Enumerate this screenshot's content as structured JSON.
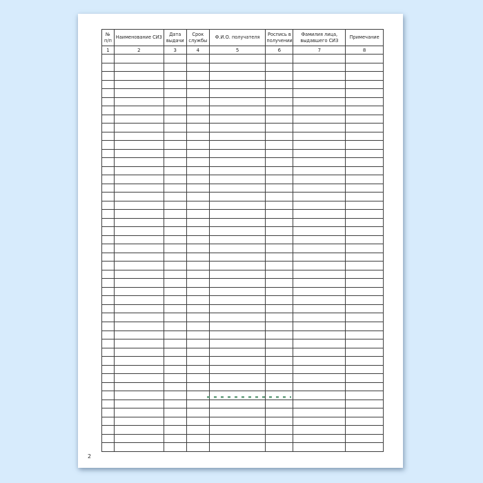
{
  "window": {
    "background_color": "#d7ebfc"
  },
  "document": {
    "page_number": "2",
    "paper_color": "#ffffff"
  },
  "table": {
    "border_color": "#3c3c3c",
    "columns": [
      {
        "number": "1",
        "label": "№ п/п"
      },
      {
        "number": "2",
        "label": "Наименование СИЗ"
      },
      {
        "number": "3",
        "label": "Дата выдачи"
      },
      {
        "number": "4",
        "label": "Срок службы"
      },
      {
        "number": "5",
        "label": "Ф.И.О. получателя"
      },
      {
        "number": "6",
        "label": "Роспись в получении"
      },
      {
        "number": "7",
        "label": "Фамилия лица, выдавшего СИЗ"
      },
      {
        "number": "8",
        "label": "Примечание"
      }
    ],
    "body_row_count": 46
  },
  "watermark": {
    "color": "#2f7d52"
  }
}
